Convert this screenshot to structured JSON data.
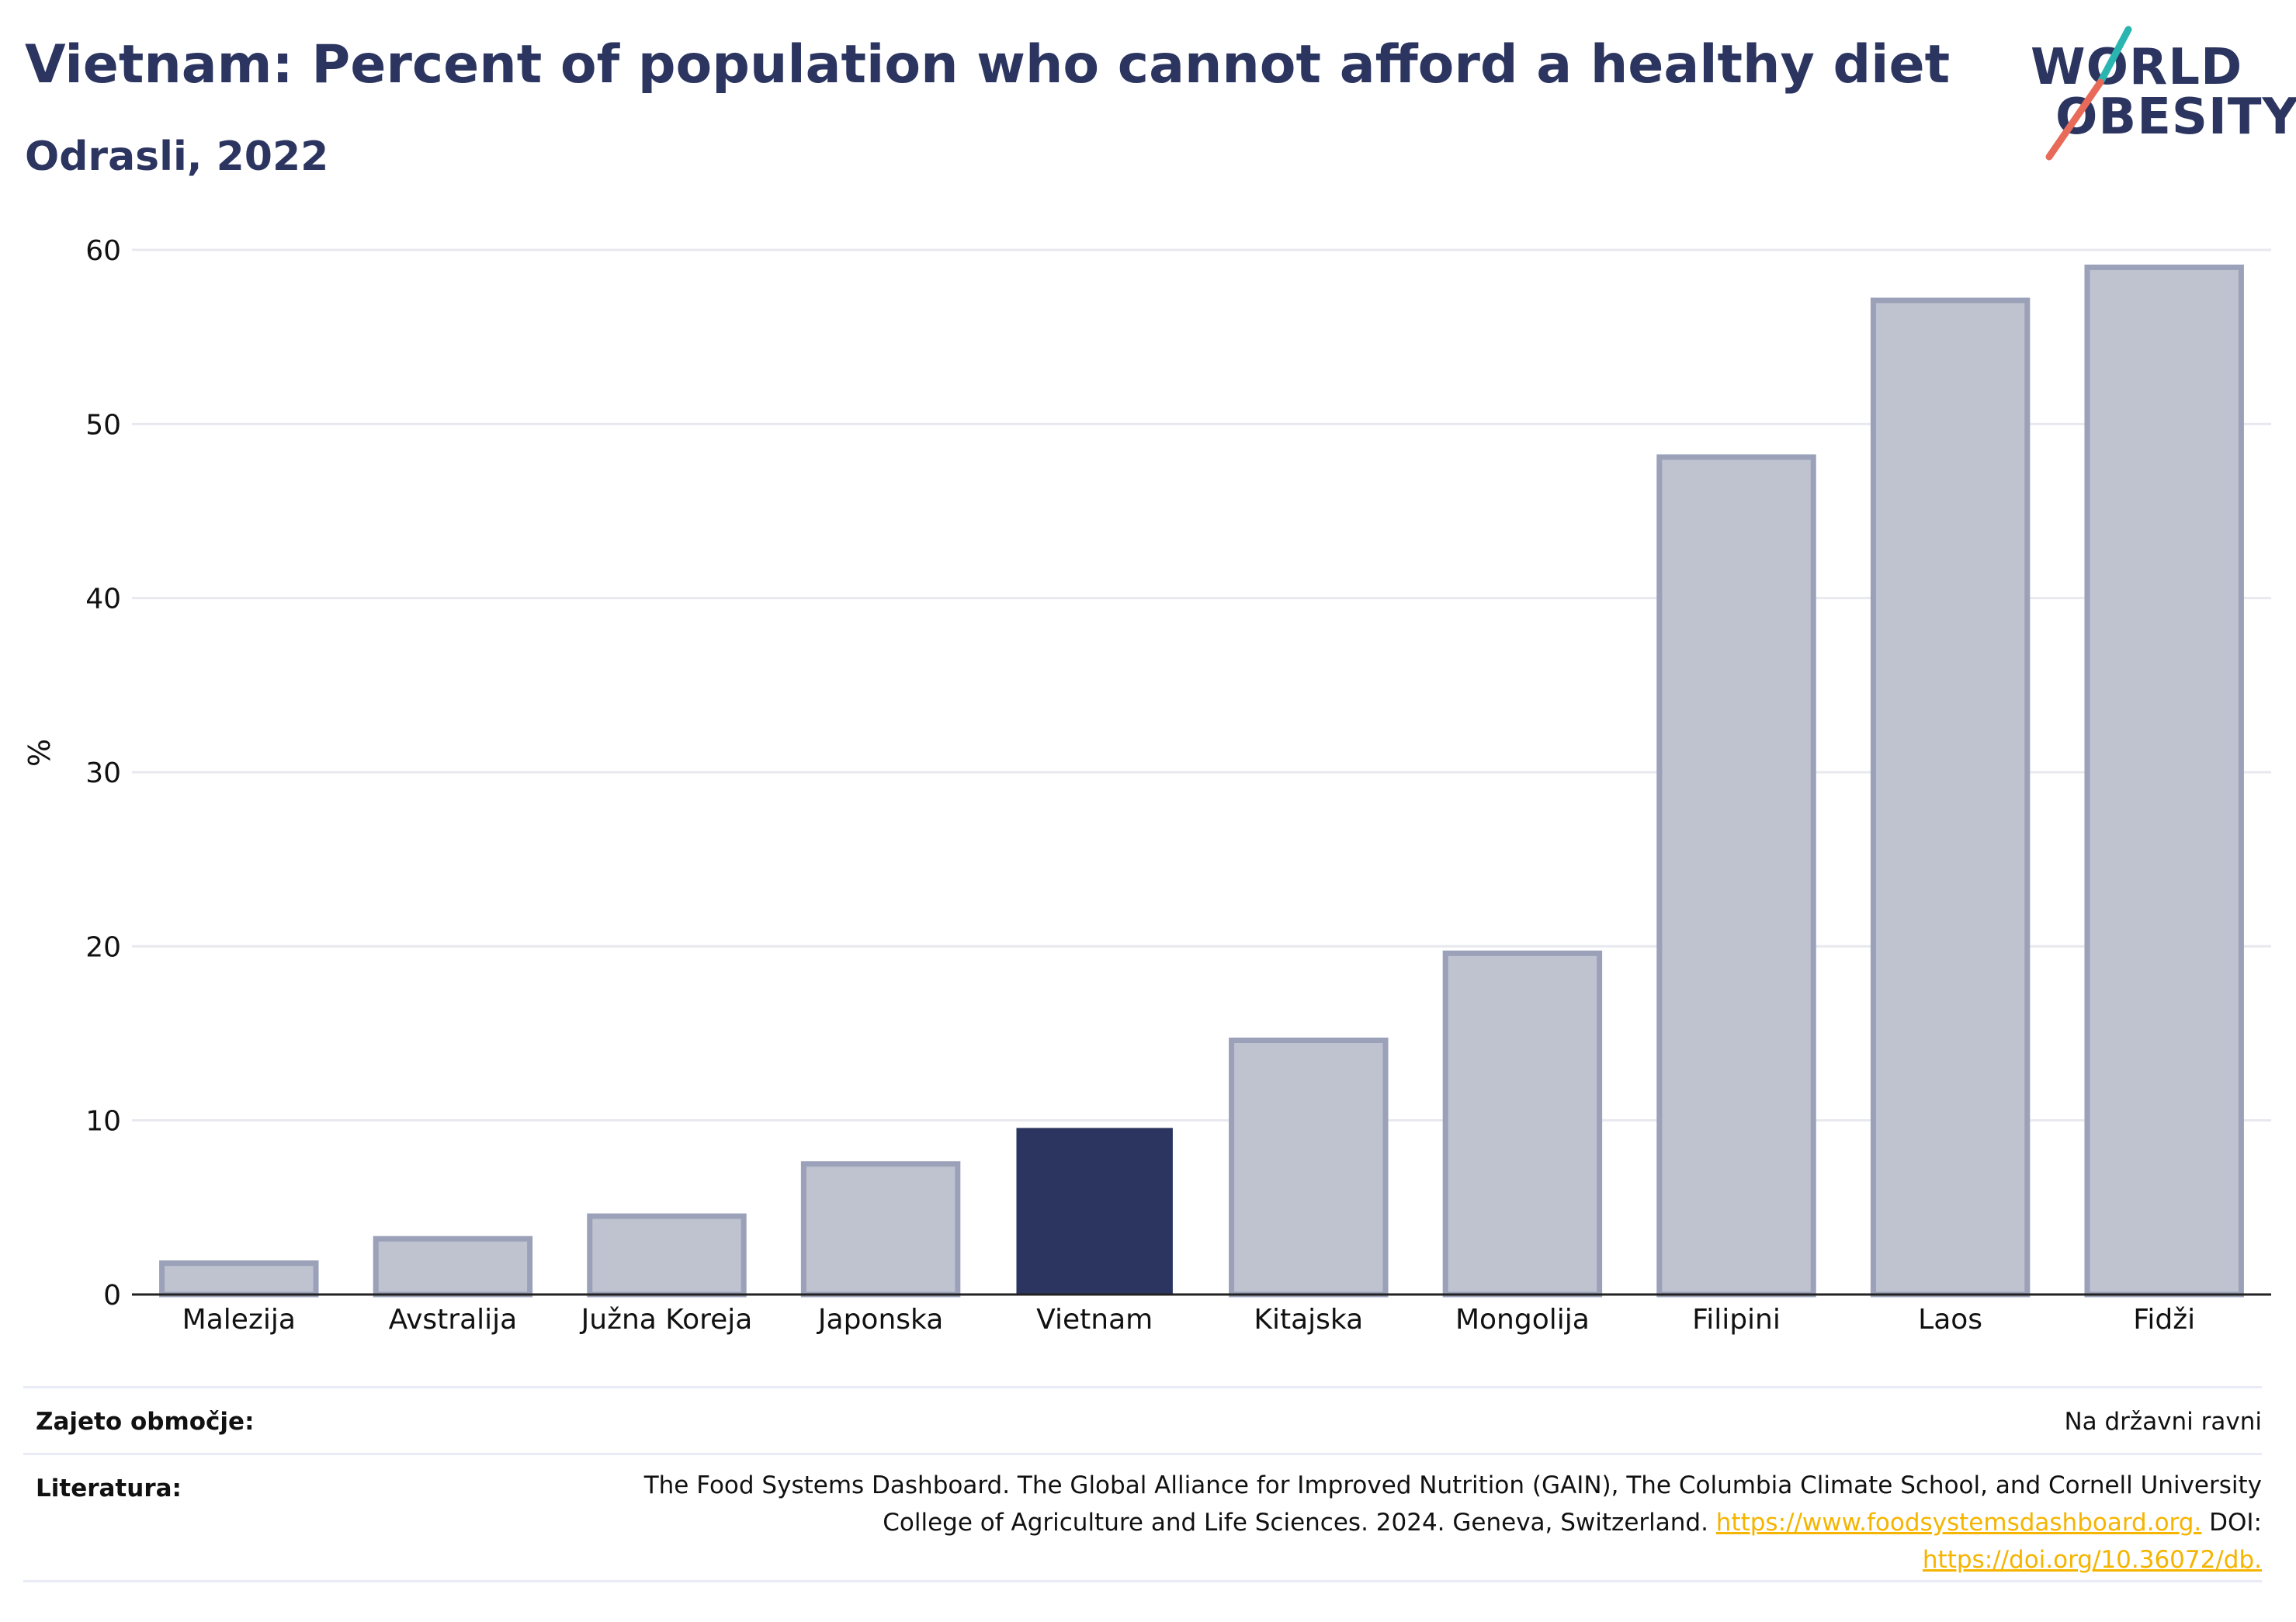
{
  "header": {
    "title": "Vietnam: Percent of population who cannot afford a healthy diet",
    "subtitle": "Odrasli, 2022"
  },
  "logo": {
    "line1": "WORLD",
    "line2": "OBESITY"
  },
  "colors": {
    "highlight": "#2b3560",
    "bar_fill": "#bfc2cf",
    "bar_stroke": "#9aa1b8",
    "accent_teal": "#2bb5b0",
    "accent_coral": "#e86a58"
  },
  "chart_data": {
    "type": "bar",
    "categories": [
      "Malezija",
      "Avstralija",
      "Južna Koreja",
      "Japonska",
      "Vietnam",
      "Kitajska",
      "Mongolija",
      "Filipini",
      "Laos",
      "Fidži"
    ],
    "values": [
      1.8,
      3.2,
      4.5,
      7.5,
      9.5,
      14.6,
      19.6,
      48.1,
      57.1,
      59.0
    ],
    "highlight": "Vietnam",
    "ylabel": "%",
    "yticks": [
      0,
      10,
      20,
      30,
      40,
      50,
      60
    ],
    "ylim": [
      0,
      60
    ],
    "grid": true
  },
  "footer": {
    "coverage_label": "Zajeto območje:",
    "coverage_value": "Na državni ravni",
    "source_label": "Literatura:",
    "source_line1": "The Food Systems Dashboard. The Global Alliance for Improved Nutrition (GAIN), The Columbia Climate School, and Cornell University",
    "source_line2_text": "College of Agriculture and Life Sciences. 2024. Geneva, Switzerland.",
    "source_link1": "https://www.foodsystemsdashboard.org.",
    "source_doi_label": "DOI:",
    "source_link2": "https://doi.org/10.36072/db."
  }
}
